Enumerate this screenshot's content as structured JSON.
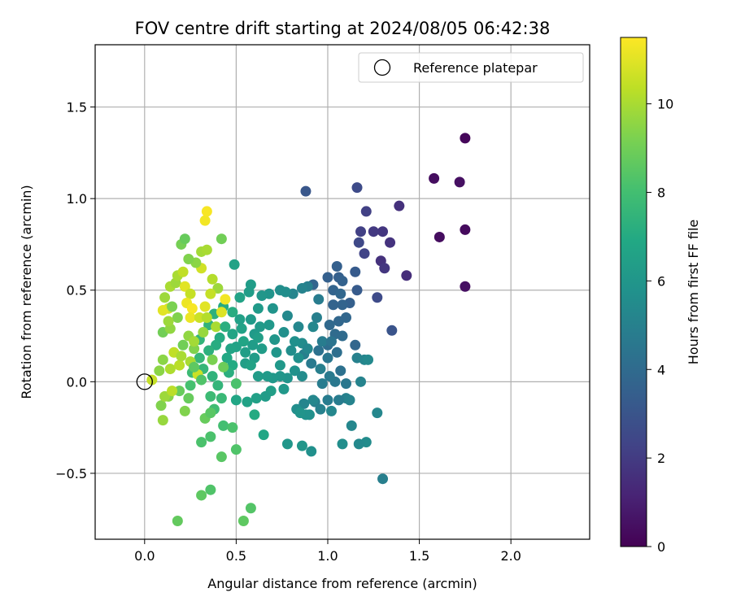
{
  "chart_data": {
    "type": "scatter",
    "title": "FOV centre drift starting at 2024/08/05 06:42:38",
    "xlabel": "Angular distance from reference (arcmin)",
    "ylabel": "Rotation from reference (arcmin)",
    "xlim": [
      -0.27,
      2.43
    ],
    "ylim": [
      -0.86,
      1.84
    ],
    "xticks": [
      0.0,
      0.5,
      1.0,
      1.5,
      2.0
    ],
    "xtick_labels": [
      "0.0",
      "0.5",
      "1.0",
      "1.5",
      "2.0"
    ],
    "yticks": [
      -0.5,
      0.0,
      0.5,
      1.0,
      1.5
    ],
    "ytick_labels": [
      "−0.5",
      "0.0",
      "0.5",
      "1.0",
      "1.5"
    ],
    "grid": true,
    "legend": {
      "placement": "top-right",
      "entries": [
        "Reference platepar"
      ]
    },
    "reference_point": {
      "x": 0.0,
      "y": 0.0,
      "name": "Reference platepar"
    },
    "colorbar": {
      "label": "Hours from first FF file",
      "range": [
        0,
        11.5
      ],
      "ticks": [
        0,
        2,
        4,
        6,
        8,
        10
      ],
      "tick_labels": [
        "0",
        "2",
        "4",
        "6",
        "8",
        "10"
      ],
      "colormap": "viridis"
    },
    "series": [
      {
        "points": [
          [
            1.75,
            1.33,
            0.2
          ],
          [
            1.58,
            1.11,
            0.4
          ],
          [
            1.72,
            1.09,
            0.5
          ],
          [
            1.75,
            0.83,
            0.3
          ],
          [
            1.61,
            0.79,
            0.4
          ],
          [
            1.75,
            0.52,
            0.5
          ],
          [
            1.43,
            0.58,
            1.5
          ],
          [
            1.39,
            0.96,
            1.6
          ],
          [
            1.34,
            0.76,
            1.7
          ],
          [
            1.3,
            0.82,
            1.8
          ],
          [
            1.25,
            0.82,
            1.9
          ],
          [
            1.29,
            0.66,
            1.6
          ],
          [
            1.31,
            0.62,
            1.8
          ],
          [
            1.21,
            0.93,
            2.2
          ],
          [
            1.16,
            1.06,
            2.6
          ],
          [
            1.18,
            0.82,
            2.2
          ],
          [
            1.17,
            0.76,
            2.5
          ],
          [
            1.27,
            0.46,
            2.6
          ],
          [
            1.2,
            0.7,
            2.3
          ],
          [
            0.88,
            1.04,
            3.1
          ],
          [
            1.35,
            0.28,
            3.0
          ],
          [
            1.16,
            0.5,
            3.3
          ],
          [
            1.15,
            0.6,
            3.3
          ],
          [
            1.05,
            0.63,
            3.5
          ],
          [
            1.06,
            0.57,
            3.5
          ],
          [
            1.0,
            0.57,
            3.5
          ],
          [
            1.08,
            0.55,
            3.6
          ],
          [
            1.03,
            0.5,
            3.7
          ],
          [
            0.92,
            0.53,
            3.7
          ],
          [
            1.07,
            0.48,
            3.8
          ],
          [
            1.12,
            0.43,
            3.5
          ],
          [
            1.08,
            0.42,
            3.7
          ],
          [
            1.03,
            0.42,
            3.7
          ],
          [
            1.1,
            0.35,
            3.8
          ],
          [
            1.06,
            0.33,
            3.8
          ],
          [
            1.01,
            0.31,
            3.9
          ],
          [
            1.04,
            0.26,
            4.0
          ],
          [
            1.08,
            0.25,
            4.0
          ],
          [
            1.15,
            0.2,
            3.8
          ],
          [
            1.0,
            0.2,
            4.1
          ],
          [
            0.95,
            0.17,
            4.3
          ],
          [
            1.05,
            0.16,
            4.2
          ],
          [
            1.0,
            0.13,
            4.5
          ],
          [
            0.91,
            0.1,
            4.7
          ],
          [
            1.07,
            0.06,
            4.3
          ],
          [
            1.04,
            0.0,
            4.6
          ],
          [
            0.97,
            -0.01,
            4.8
          ],
          [
            1.1,
            -0.01,
            4.6
          ],
          [
            1.01,
            0.03,
            4.7
          ],
          [
            0.87,
            0.15,
            4.9
          ],
          [
            0.94,
            0.35,
            4.9
          ],
          [
            0.97,
            0.22,
            4.8
          ],
          [
            1.16,
            0.13,
            5.0
          ],
          [
            1.2,
            0.12,
            5.2
          ],
          [
            1.22,
            0.12,
            5.4
          ],
          [
            1.18,
            0.0,
            5.1
          ],
          [
            1.27,
            -0.17,
            5.3
          ],
          [
            1.3,
            -0.53,
            4.9
          ],
          [
            1.21,
            -0.33,
            5.5
          ],
          [
            1.17,
            -0.34,
            5.4
          ],
          [
            1.08,
            -0.34,
            5.6
          ],
          [
            1.13,
            -0.24,
            5.3
          ],
          [
            1.1,
            -0.09,
            5.0
          ],
          [
            1.12,
            -0.1,
            5.1
          ],
          [
            1.06,
            -0.1,
            4.8
          ],
          [
            1.0,
            -0.1,
            4.8
          ],
          [
            0.93,
            -0.11,
            4.9
          ],
          [
            0.96,
            -0.15,
            5.0
          ],
          [
            0.87,
            -0.12,
            5.2
          ],
          [
            0.92,
            -0.1,
            5.3
          ],
          [
            0.83,
            -0.15,
            5.6
          ],
          [
            1.02,
            -0.16,
            5.3
          ],
          [
            0.9,
            -0.18,
            5.7
          ],
          [
            0.88,
            -0.18,
            5.8
          ],
          [
            0.85,
            -0.17,
            5.9
          ],
          [
            0.91,
            -0.38,
            5.7
          ],
          [
            0.86,
            -0.35,
            6.0
          ],
          [
            0.78,
            -0.34,
            6.0
          ],
          [
            0.89,
            0.52,
            4.9
          ],
          [
            0.86,
            0.51,
            5.1
          ],
          [
            0.81,
            0.48,
            5.2
          ],
          [
            0.78,
            0.36,
            5.4
          ],
          [
            0.84,
            0.3,
            5.3
          ],
          [
            0.86,
            0.21,
            5.5
          ],
          [
            0.8,
            0.17,
            5.6
          ],
          [
            0.74,
            0.5,
            5.6
          ],
          [
            0.77,
            0.49,
            5.6
          ],
          [
            0.82,
            0.22,
            5.7
          ],
          [
            0.84,
            0.13,
            5.7
          ],
          [
            0.89,
            0.18,
            5.3
          ],
          [
            0.82,
            0.06,
            5.8
          ],
          [
            0.86,
            0.03,
            5.5
          ],
          [
            0.78,
            0.02,
            5.9
          ],
          [
            0.74,
            0.03,
            6.0
          ],
          [
            0.74,
            0.09,
            6.1
          ],
          [
            0.76,
            -0.04,
            6.1
          ],
          [
            0.7,
            0.02,
            6.1
          ],
          [
            0.72,
            0.16,
            6.0
          ],
          [
            0.71,
            0.23,
            6.0
          ],
          [
            0.68,
            0.31,
            6.1
          ],
          [
            0.68,
            0.48,
            5.9
          ],
          [
            0.64,
            0.47,
            6.0
          ],
          [
            0.58,
            0.53,
            6.3
          ],
          [
            0.57,
            0.49,
            6.3
          ],
          [
            0.52,
            0.46,
            6.6
          ],
          [
            0.62,
            0.4,
            6.2
          ],
          [
            0.58,
            0.34,
            6.2
          ],
          [
            0.63,
            0.3,
            6.2
          ],
          [
            0.6,
            0.26,
            6.2
          ],
          [
            0.59,
            0.2,
            6.3
          ],
          [
            0.64,
            0.18,
            6.3
          ],
          [
            0.55,
            0.16,
            6.4
          ],
          [
            0.6,
            0.13,
            6.3
          ],
          [
            0.55,
            0.1,
            6.4
          ],
          [
            0.62,
            0.03,
            6.3
          ],
          [
            0.67,
            0.03,
            6.2
          ],
          [
            0.69,
            -0.05,
            6.4
          ],
          [
            0.66,
            -0.08,
            6.3
          ],
          [
            0.61,
            -0.09,
            6.5
          ],
          [
            0.56,
            -0.11,
            6.6
          ],
          [
            0.5,
            -0.1,
            6.8
          ],
          [
            0.65,
            -0.29,
            6.8
          ],
          [
            0.6,
            -0.18,
            7.0
          ],
          [
            0.5,
            0.19,
            6.6
          ],
          [
            0.47,
            0.18,
            6.7
          ],
          [
            0.45,
            0.13,
            6.9
          ],
          [
            0.48,
            0.09,
            7.0
          ],
          [
            0.46,
            0.05,
            7.2
          ],
          [
            0.49,
            0.64,
            6.6
          ],
          [
            0.53,
            0.29,
            6.6
          ],
          [
            0.48,
            0.26,
            6.7
          ],
          [
            0.52,
            0.34,
            6.5
          ],
          [
            0.43,
            0.41,
            7.0
          ],
          [
            0.38,
            0.37,
            7.3
          ],
          [
            0.35,
            0.31,
            7.4
          ],
          [
            0.41,
            0.24,
            7.0
          ],
          [
            0.39,
            0.2,
            7.1
          ],
          [
            0.35,
            0.17,
            7.3
          ],
          [
            0.3,
            0.23,
            7.5
          ],
          [
            0.3,
            0.13,
            7.6
          ],
          [
            0.32,
            0.07,
            7.6
          ],
          [
            0.26,
            0.05,
            7.8
          ],
          [
            0.37,
            0.03,
            7.4
          ],
          [
            0.4,
            -0.02,
            7.5
          ],
          [
            0.36,
            -0.08,
            7.8
          ],
          [
            0.42,
            -0.09,
            7.7
          ],
          [
            0.38,
            -0.15,
            7.9
          ],
          [
            0.43,
            -0.24,
            8.0
          ],
          [
            0.36,
            -0.3,
            8.2
          ],
          [
            0.31,
            -0.33,
            8.2
          ],
          [
            0.42,
            -0.41,
            8.5
          ],
          [
            0.36,
            -0.59,
            8.3
          ],
          [
            0.31,
            -0.62,
            8.6
          ],
          [
            0.54,
            -0.76,
            8.6
          ],
          [
            0.58,
            -0.69,
            8.4
          ],
          [
            0.18,
            -0.76,
            8.7
          ],
          [
            0.5,
            -0.37,
            8.3
          ],
          [
            0.48,
            -0.25,
            8.2
          ],
          [
            0.5,
            -0.01,
            8.2
          ],
          [
            0.33,
            -0.2,
            8.8
          ],
          [
            0.36,
            -0.17,
            8.5
          ],
          [
            0.24,
            -0.09,
            8.8
          ],
          [
            0.19,
            -0.05,
            8.8
          ],
          [
            0.09,
            -0.13,
            9.3
          ],
          [
            0.1,
            -0.21,
            9.7
          ],
          [
            0.22,
            -0.16,
            9.3
          ],
          [
            0.13,
            -0.08,
            9.4
          ],
          [
            0.11,
            -0.08,
            9.8
          ],
          [
            0.15,
            -0.05,
            10.3
          ],
          [
            0.04,
            0.01,
            10.5
          ],
          [
            0.08,
            0.06,
            9.5
          ],
          [
            0.1,
            0.12,
            9.5
          ],
          [
            0.16,
            0.16,
            10.4
          ],
          [
            0.14,
            0.07,
            10.1
          ],
          [
            0.19,
            0.09,
            10.3
          ],
          [
            0.25,
            0.11,
            10.0
          ],
          [
            0.29,
            0.04,
            10.6
          ],
          [
            0.27,
            0.18,
            9.3
          ],
          [
            0.21,
            0.2,
            9.0
          ],
          [
            0.24,
            0.25,
            9.6
          ],
          [
            0.1,
            0.27,
            9.0
          ],
          [
            0.14,
            0.29,
            9.6
          ],
          [
            0.18,
            0.35,
            9.3
          ],
          [
            0.13,
            0.33,
            9.8
          ],
          [
            0.13,
            0.4,
            10.8
          ],
          [
            0.1,
            0.39,
            11.0
          ],
          [
            0.15,
            0.41,
            9.2
          ],
          [
            0.11,
            0.46,
            9.8
          ],
          [
            0.14,
            0.52,
            10.0
          ],
          [
            0.17,
            0.54,
            9.8
          ],
          [
            0.18,
            0.58,
            10.0
          ],
          [
            0.21,
            0.6,
            10.4
          ],
          [
            0.22,
            0.52,
            11.0
          ],
          [
            0.25,
            0.48,
            10.5
          ],
          [
            0.23,
            0.43,
            11.2
          ],
          [
            0.26,
            0.4,
            11.4
          ],
          [
            0.25,
            0.35,
            11.2
          ],
          [
            0.3,
            0.35,
            10.6
          ],
          [
            0.33,
            0.41,
            11.0
          ],
          [
            0.34,
            0.35,
            10.2
          ],
          [
            0.39,
            0.3,
            10.0
          ],
          [
            0.42,
            0.38,
            10.9
          ],
          [
            0.44,
            0.45,
            11.3
          ],
          [
            0.4,
            0.51,
            9.8
          ],
          [
            0.37,
            0.56,
            10.2
          ],
          [
            0.31,
            0.62,
            10.7
          ],
          [
            0.28,
            0.65,
            9.5
          ],
          [
            0.31,
            0.71,
            9.9
          ],
          [
            0.34,
            0.72,
            10.0
          ],
          [
            0.24,
            0.67,
            9.3
          ],
          [
            0.2,
            0.75,
            9.1
          ],
          [
            0.22,
            0.78,
            8.8
          ],
          [
            0.42,
            0.78,
            9.0
          ],
          [
            0.33,
            0.88,
            11.3
          ],
          [
            0.34,
            0.93,
            11.4
          ],
          [
            0.36,
            0.48,
            10.5
          ],
          [
            0.32,
            0.27,
            9.7
          ],
          [
            0.27,
            0.22,
            9.9
          ],
          [
            0.2,
            0.14,
            10.0
          ],
          [
            0.37,
            0.12,
            9.2
          ],
          [
            0.43,
            0.08,
            8.9
          ],
          [
            0.27,
            0.08,
            8.6
          ],
          [
            0.31,
            0.01,
            8.3
          ],
          [
            0.25,
            -0.02,
            8.1
          ],
          [
            0.48,
            0.38,
            7.1
          ],
          [
            0.44,
            0.3,
            7.2
          ],
          [
            0.54,
            0.22,
            6.7
          ],
          [
            0.58,
            0.09,
            6.6
          ],
          [
            0.62,
            0.24,
            6.4
          ],
          [
            0.7,
            0.4,
            5.9
          ],
          [
            0.92,
            0.3,
            5.3
          ],
          [
            0.96,
            0.07,
            4.9
          ],
          [
            1.02,
            0.22,
            4.4
          ],
          [
            0.95,
            0.45,
            4.8
          ],
          [
            0.76,
            0.27,
            5.7
          ]
        ]
      }
    ]
  }
}
